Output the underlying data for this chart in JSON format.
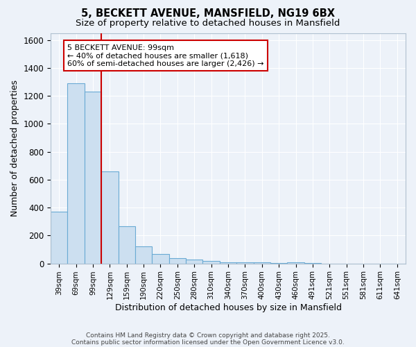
{
  "title_line1": "5, BECKETT AVENUE, MANSFIELD, NG19 6BX",
  "title_line2": "Size of property relative to detached houses in Mansfield",
  "xlabel": "Distribution of detached houses by size in Mansfield",
  "ylabel": "Number of detached properties",
  "categories": [
    "39sqm",
    "69sqm",
    "99sqm",
    "129sqm",
    "159sqm",
    "190sqm",
    "220sqm",
    "250sqm",
    "280sqm",
    "310sqm",
    "340sqm",
    "370sqm",
    "400sqm",
    "430sqm",
    "460sqm",
    "491sqm",
    "521sqm",
    "551sqm",
    "581sqm",
    "611sqm",
    "641sqm"
  ],
  "values": [
    370,
    1290,
    1230,
    660,
    265,
    120,
    70,
    40,
    30,
    20,
    10,
    10,
    8,
    5,
    10,
    5,
    0,
    0,
    0,
    0,
    0
  ],
  "bar_color": "#ccdff0",
  "bar_edge_color": "#6aaad4",
  "red_line_index": 2,
  "red_line_color": "#cc0000",
  "annotation_line1": "5 BECKETT AVENUE: 99sqm",
  "annotation_line2": "← 40% of detached houses are smaller (1,618)",
  "annotation_line3": "60% of semi-detached houses are larger (2,426) →",
  "annotation_box_color": "#ffffff",
  "annotation_box_edge": "#cc0000",
  "ylim": [
    0,
    1650
  ],
  "yticks": [
    0,
    200,
    400,
    600,
    800,
    1000,
    1200,
    1400,
    1600
  ],
  "background_color": "#edf2f9",
  "grid_color": "#ffffff",
  "footnote_line1": "Contains HM Land Registry data © Crown copyright and database right 2025.",
  "footnote_line2": "Contains public sector information licensed under the Open Government Licence v3.0."
}
